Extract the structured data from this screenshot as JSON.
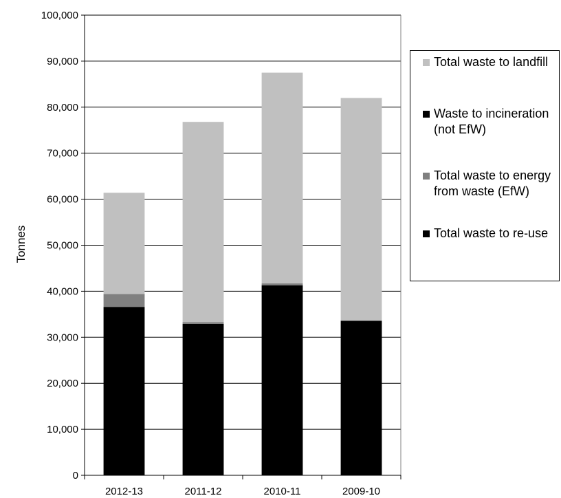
{
  "chart_data": {
    "type": "bar",
    "stacked": true,
    "categories": [
      "2012-13",
      "2011-12",
      "2010-11",
      "2009-10"
    ],
    "ylabel": "Tonnes",
    "ylim": [
      0,
      100000
    ],
    "yticks": [
      "0",
      "10,000",
      "20,000",
      "30,000",
      "40,000",
      "50,000",
      "60,000",
      "70,000",
      "80,000",
      "90,000",
      "100,000"
    ],
    "grid": true,
    "legend_position": "right",
    "series": [
      {
        "name": "Total waste to re-use",
        "color": "#000000",
        "values": [
          36600,
          32900,
          41300,
          33600
        ]
      },
      {
        "name": "Total waste to energy from waste (EfW)",
        "color": "#808080",
        "values": [
          2800,
          400,
          400,
          0
        ]
      },
      {
        "name": "Waste to incineration (not EfW)",
        "color": "#000000",
        "values": [
          0,
          0,
          0,
          0
        ]
      },
      {
        "name": "Total waste to landfill",
        "color": "#c0c0c0",
        "values": [
          22000,
          43500,
          45800,
          48400
        ]
      }
    ],
    "legend_order": [
      3,
      2,
      1,
      0
    ]
  }
}
